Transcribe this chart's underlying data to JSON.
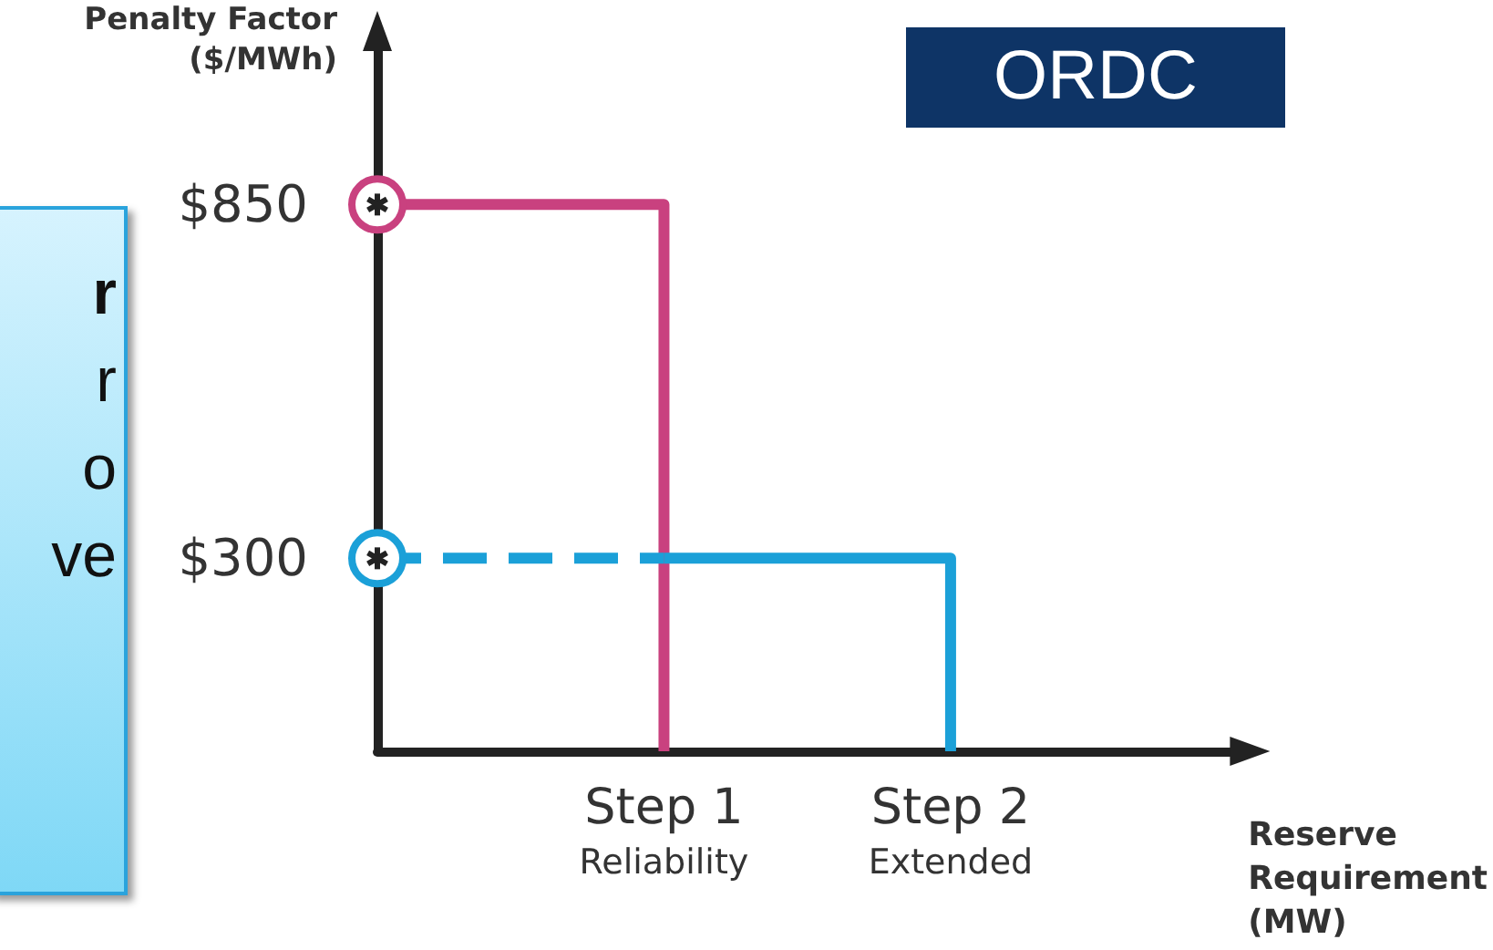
{
  "chart_data": {
    "type": "step",
    "title": "ORDC",
    "ylabel": "Penalty Factor\n($/MWh)",
    "xlabel": "Reserve\nRequirement\n(MW)",
    "categories": [
      null,
      "Step 1\nReliability",
      "Step 2\nExtended",
      null
    ],
    "series": [
      {
        "color": "#c9417f",
        "values": [
          850,
          0,
          null,
          null
        ],
        "line_style": "solid"
      },
      {
        "color": "#1ba0d8",
        "values": [
          300,
          300,
          null,
          null
        ],
        "line_style": "dashed"
      },
      {
        "color": "#1ba0d8",
        "values": [
          null,
          300,
          0,
          null
        ],
        "line_style": "solid"
      }
    ],
    "ylim": [
      0,
      1100
    ],
    "yticks": [
      {
        "value": 300,
        "label": "$300"
      },
      {
        "value": 850,
        "label": "$850"
      }
    ],
    "grid": false,
    "annotations": [
      "r",
      "r",
      "o",
      "ve"
    ]
  }
}
